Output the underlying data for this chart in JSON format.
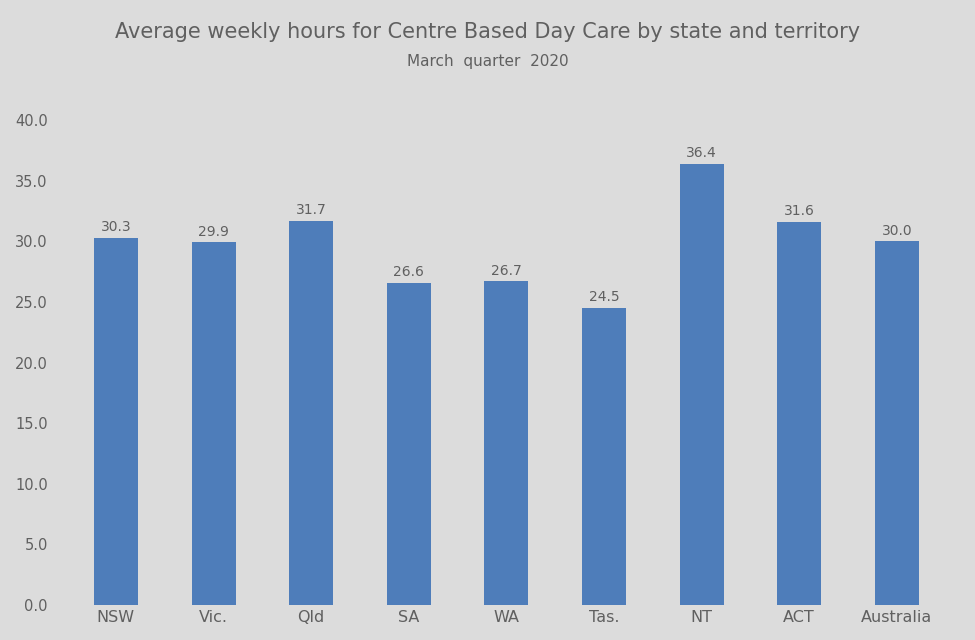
{
  "categories": [
    "NSW",
    "Vic.",
    "Qld",
    "SA",
    "WA",
    "Tas.",
    "NT",
    "ACT",
    "Australia"
  ],
  "values": [
    30.3,
    29.9,
    31.7,
    26.6,
    26.7,
    24.5,
    36.4,
    31.6,
    30.0
  ],
  "bar_color": "#4e7dba",
  "title": "Average weekly hours for Centre Based Day Care by state and territory",
  "subtitle": "March  quarter  2020",
  "ylim": [
    0,
    40
  ],
  "yticks": [
    0.0,
    5.0,
    10.0,
    15.0,
    20.0,
    25.0,
    30.0,
    35.0,
    40.0
  ],
  "background_color": "#dcdcdc",
  "title_fontsize": 15,
  "subtitle_fontsize": 11,
  "tick_label_color": "#606060",
  "bar_label_fontsize": 10,
  "bar_width": 0.45
}
